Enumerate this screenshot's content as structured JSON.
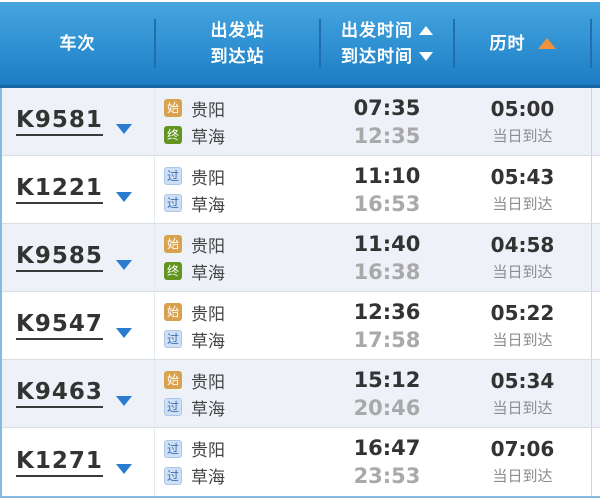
{
  "header": {
    "train_label": "车次",
    "station_labels": [
      "出发站",
      "到达站"
    ],
    "time_labels": [
      "出发时间",
      "到达时间"
    ],
    "duration_label": "历时"
  },
  "colors": {
    "header_blue_top": "#47a5df",
    "header_blue_bottom": "#1d7cc2",
    "header_divider": "#1f6fb0",
    "sort_active_orange": "#f0923c",
    "dropdown_blue": "#2b7bd0",
    "badge_start_bg": "#d7a14e",
    "badge_end_bg": "#61951f",
    "badge_pass_bg": "#cfe0f5",
    "badge_pass_text": "#3e6fb4",
    "row_alt_bg": "#eef2f8",
    "outer_border": "#85bbdf"
  },
  "rows": [
    {
      "train_no": "K9581",
      "from": {
        "badge": "始",
        "type": "start",
        "name": "贵阳"
      },
      "to": {
        "badge": "终",
        "type": "end",
        "name": "草海"
      },
      "dep": "07:35",
      "arr": "12:35",
      "duration": "05:00",
      "arrival_note": "当日到达"
    },
    {
      "train_no": "K1221",
      "from": {
        "badge": "过",
        "type": "pass",
        "name": "贵阳"
      },
      "to": {
        "badge": "过",
        "type": "pass",
        "name": "草海"
      },
      "dep": "11:10",
      "arr": "16:53",
      "duration": "05:43",
      "arrival_note": "当日到达"
    },
    {
      "train_no": "K9585",
      "from": {
        "badge": "始",
        "type": "start",
        "name": "贵阳"
      },
      "to": {
        "badge": "终",
        "type": "end",
        "name": "草海"
      },
      "dep": "11:40",
      "arr": "16:38",
      "duration": "04:58",
      "arrival_note": "当日到达"
    },
    {
      "train_no": "K9547",
      "from": {
        "badge": "始",
        "type": "start",
        "name": "贵阳"
      },
      "to": {
        "badge": "过",
        "type": "pass",
        "name": "草海"
      },
      "dep": "12:36",
      "arr": "17:58",
      "duration": "05:22",
      "arrival_note": "当日到达"
    },
    {
      "train_no": "K9463",
      "from": {
        "badge": "始",
        "type": "start",
        "name": "贵阳"
      },
      "to": {
        "badge": "过",
        "type": "pass",
        "name": "草海"
      },
      "dep": "15:12",
      "arr": "20:46",
      "duration": "05:34",
      "arrival_note": "当日到达"
    },
    {
      "train_no": "K1271",
      "from": {
        "badge": "过",
        "type": "pass",
        "name": "贵阳"
      },
      "to": {
        "badge": "过",
        "type": "pass",
        "name": "草海"
      },
      "dep": "16:47",
      "arr": "23:53",
      "duration": "07:06",
      "arrival_note": "当日到达"
    }
  ]
}
